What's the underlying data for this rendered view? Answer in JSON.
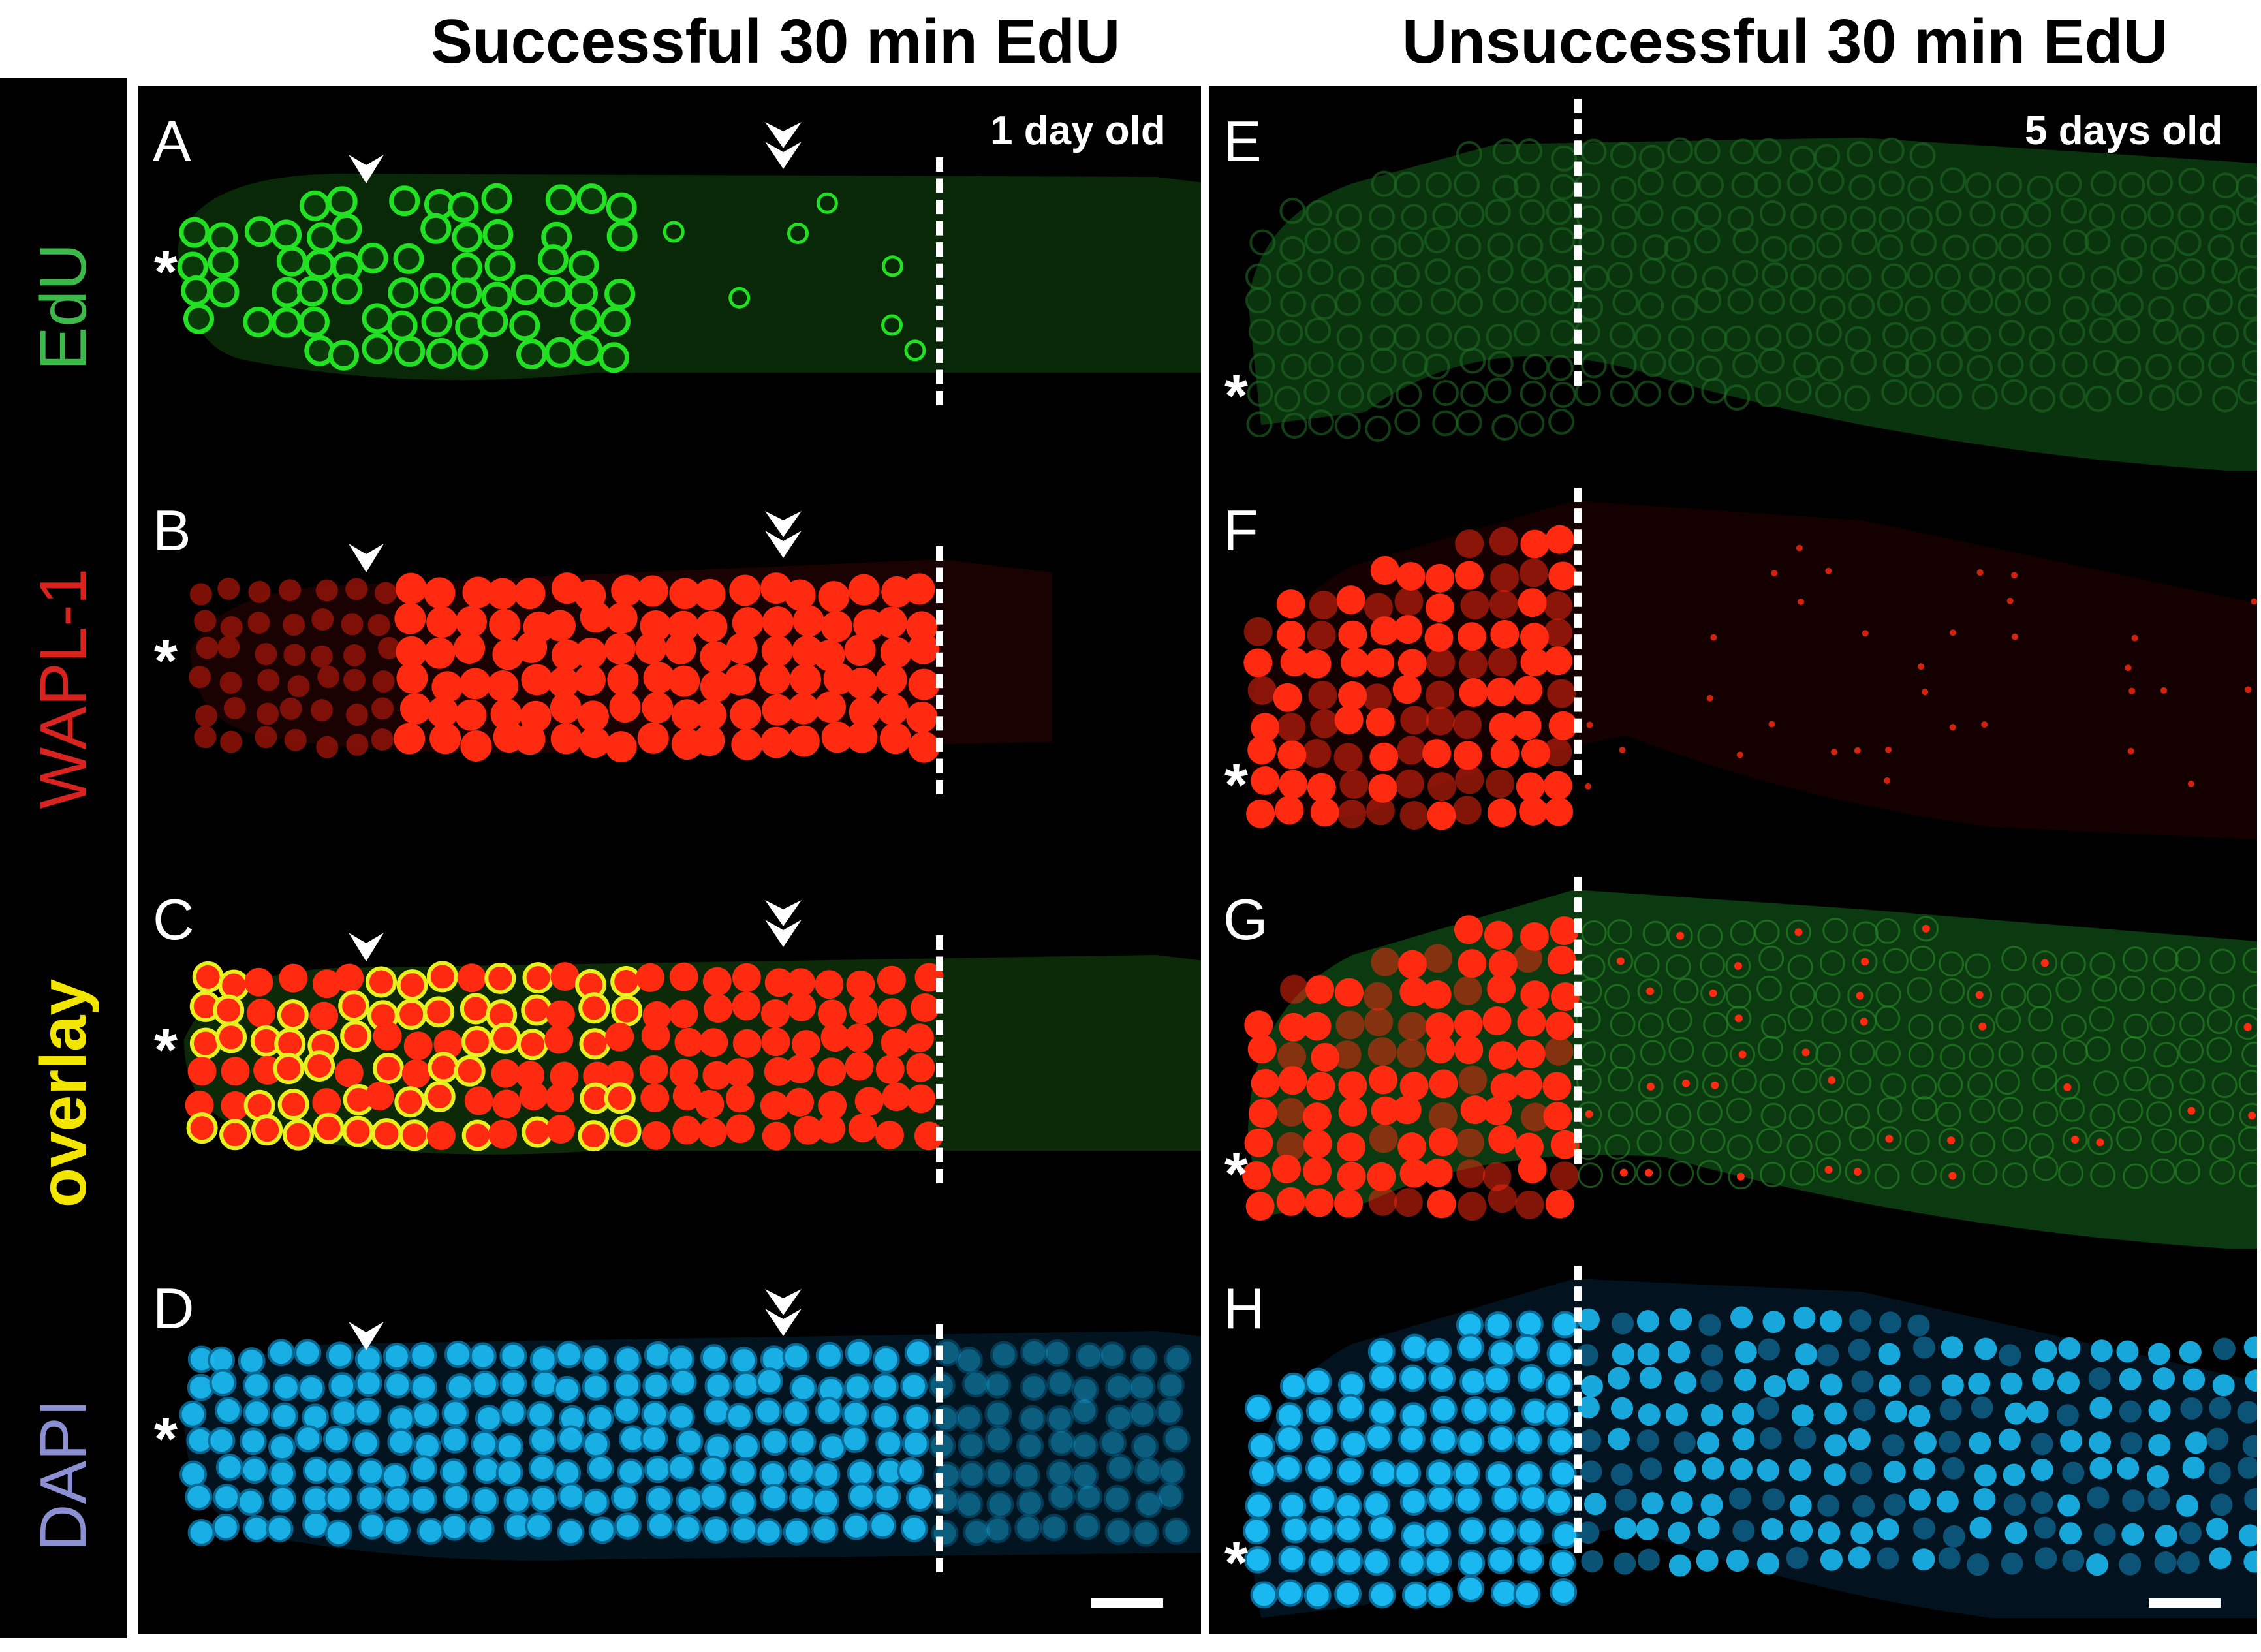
{
  "header": {
    "left_title": "Successful 30 min EdU",
    "right_title": "Unsuccessful 30 min EdU"
  },
  "row_labels": [
    {
      "text": "EdU",
      "color": "#3db84a"
    },
    {
      "text": "WAPL-1",
      "color": "#d9231f"
    },
    {
      "text": "overlay",
      "color": "#f2e600"
    },
    {
      "text": "DAPI",
      "color": "#8c8fd1"
    }
  ],
  "left_column": {
    "age_label": "1 day old",
    "panels": [
      "A",
      "B",
      "C",
      "D"
    ],
    "marker": "*",
    "annotations": [
      "arrowhead",
      "double-arrowhead"
    ]
  },
  "right_column": {
    "age_label": "5 days old",
    "panels": [
      "E",
      "F",
      "G",
      "H"
    ],
    "marker": "*"
  },
  "colors": {
    "edu": "#22e022",
    "wapl": "#ff2a10",
    "overlay_mix": "#e8f020",
    "dapi": "#1ab8f0",
    "background": "#000000"
  },
  "icons": [
    "arrowhead-icon",
    "double-arrowhead-icon",
    "scale-bar"
  ]
}
